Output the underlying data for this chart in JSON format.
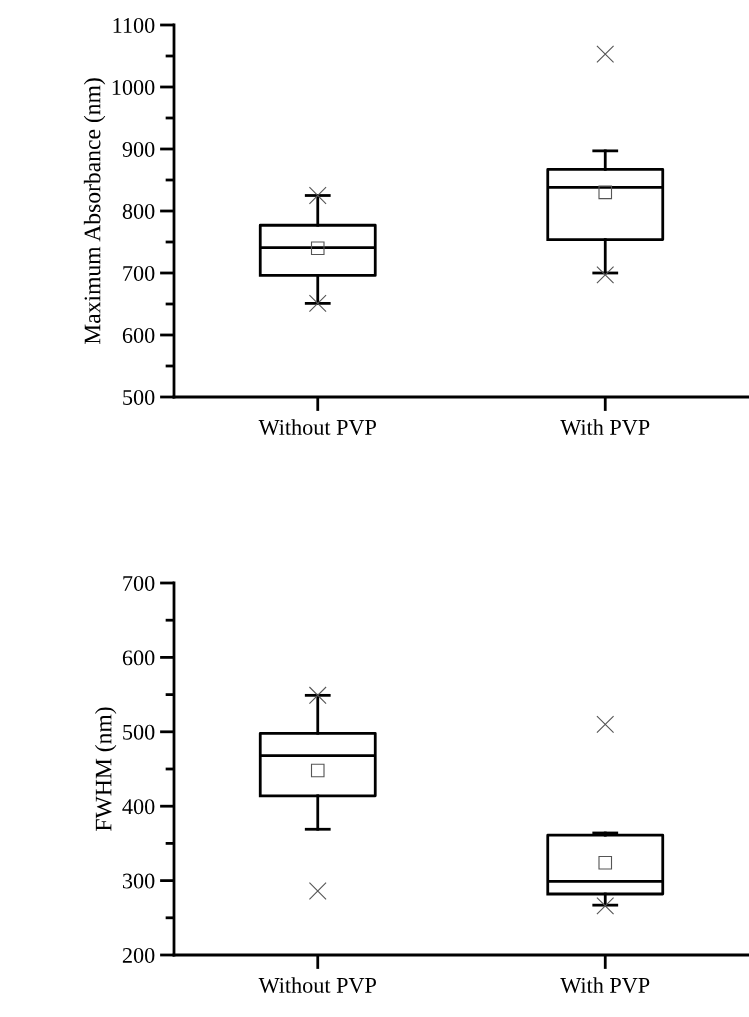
{
  "chart_data": [
    {
      "type": "box",
      "ylabel": "Maximum Absorbance (nm)",
      "categories": [
        "Without PVP",
        "With PVP"
      ],
      "ylim": [
        500,
        1100
      ],
      "yticks": [
        500,
        600,
        700,
        800,
        900,
        1000,
        1100
      ],
      "marker": "square",
      "boxes": [
        {
          "low": 651,
          "q1": 696,
          "median": 741,
          "q3": 777,
          "high": 825,
          "mean": 740,
          "outliers": [
            825,
            651
          ]
        },
        {
          "low": 700,
          "q1": 754,
          "median": 838,
          "q3": 867,
          "high": 897,
          "mean": 830,
          "outliers": [
            1053,
            697
          ]
        }
      ]
    },
    {
      "type": "box",
      "ylabel": "FWHM (nm)",
      "categories": [
        "Without PVP",
        "With PVP"
      ],
      "ylim": [
        200,
        700
      ],
      "yticks": [
        200,
        300,
        400,
        500,
        600,
        700
      ],
      "marker": "square",
      "boxes": [
        {
          "low": 369,
          "q1": 414,
          "median": 468,
          "q3": 498,
          "high": 549,
          "mean": 448,
          "outliers": [
            549,
            286
          ]
        },
        {
          "low": 267,
          "q1": 282,
          "median": 299,
          "q3": 361,
          "high": 364,
          "mean": 324,
          "outliers": [
            510,
            266
          ]
        }
      ]
    }
  ]
}
